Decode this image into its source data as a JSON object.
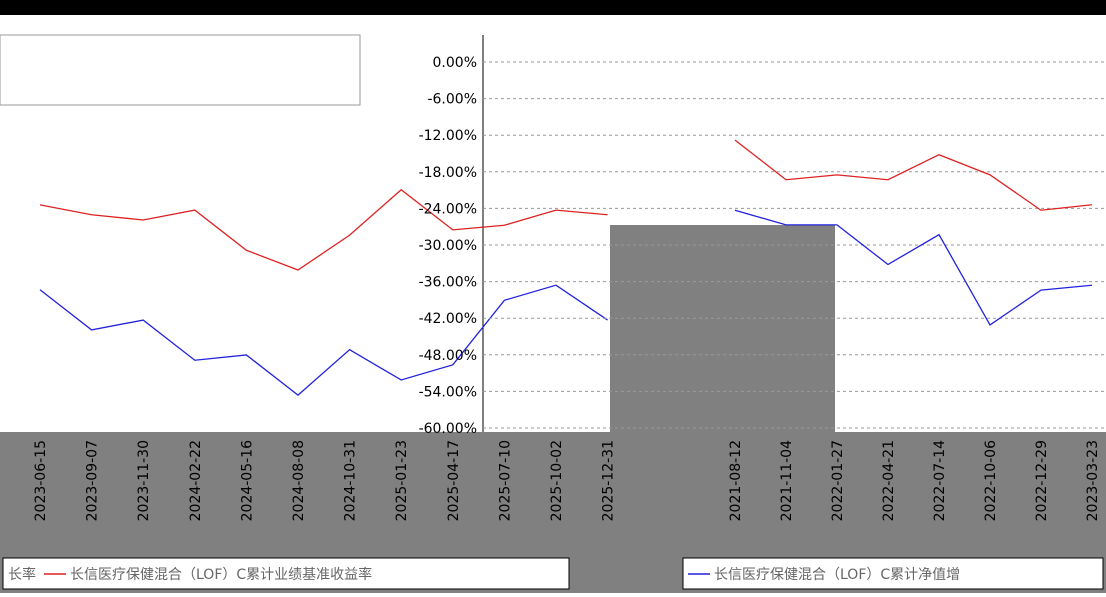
{
  "chart_data": [
    {
      "type": "line",
      "categories": [
        "2023-06-15",
        "2023-09-07",
        "2023-11-30",
        "2024-02-22",
        "2024-05-16",
        "2024-08-08",
        "2024-10-31",
        "2025-01-23",
        "2025-04-17",
        "2025-07-10",
        "2025-10-02",
        "2025-12-31"
      ],
      "ylim": [
        -60,
        0
      ],
      "series": [
        {
          "name": "长率",
          "color": "#2222dd",
          "values": [
            -38.7,
            -44.8,
            -43.3,
            -49.4,
            -48.6,
            -54.7,
            -47.8,
            -52.4,
            -50.1,
            -40.3,
            -38.0,
            -43.3
          ]
        },
        {
          "name": "长信医疗保健混合（LOF）C累计业绩基准收益率",
          "color": "#dd2222",
          "values": [
            -25.8,
            -27.3,
            -28.1,
            -26.6,
            -32.7,
            -35.7,
            -30.4,
            -23.5,
            -29.6,
            -28.9,
            -26.6,
            -27.3
          ]
        }
      ]
    },
    {
      "type": "line",
      "categories": [
        "2021-08-12",
        "2021-11-04",
        "2022-01-27",
        "2022-04-21",
        "2022-07-14",
        "2022-10-06",
        "2022-12-29",
        "2023-03-23"
      ],
      "ylim": [
        -60,
        0
      ],
      "yticks": [
        {
          "value": 0,
          "label": "0.00%"
        },
        {
          "value": -6,
          "label": "-6.00%"
        },
        {
          "value": -12,
          "label": "-12.00%"
        },
        {
          "value": -18,
          "label": "-18.00%"
        },
        {
          "value": -24,
          "label": "-24.00%"
        },
        {
          "value": -30,
          "label": "-30.00%"
        },
        {
          "value": -36,
          "label": "-36.00%"
        },
        {
          "value": -42,
          "label": "-42.00%"
        },
        {
          "value": -48,
          "label": "-48.00%"
        },
        {
          "value": -54,
          "label": "-54.00%"
        },
        {
          "value": -60,
          "label": "-60.00%"
        }
      ],
      "grid": true,
      "series": [
        {
          "name": "长信医疗保健混合（LOF）C累计净值增",
          "color": "#2222dd",
          "values": [
            -24.3,
            -26.7,
            -26.7,
            -33.2,
            -28.3,
            -43.1,
            -37.4,
            -36.6
          ]
        },
        {
          "color": "#dd2222",
          "values": [
            -12.8,
            -19.3,
            -18.5,
            -19.3,
            -15.2,
            -18.5,
            -24.3,
            -23.4
          ]
        }
      ]
    }
  ]
}
